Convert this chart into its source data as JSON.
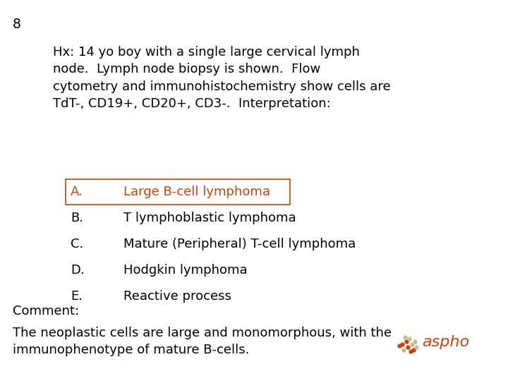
{
  "question_number": "8",
  "body_text": "Hx: 14 yo boy with a single large cervical lymph\nnode.  Lymph node biopsy is shown.  Flow\ncytometry and immunohistochemistry show cells are\nTdT-, CD19+, CD20+, CD3-.  Interpretation:",
  "answer_a_letter": "A.",
  "answer_a_text": "Large B-cell lymphoma",
  "answer_a_color": "#c8420a",
  "answers": [
    [
      "B.",
      "T lymphoblastic lymphoma"
    ],
    [
      "C.",
      "Mature (Peripheral) T-cell lymphoma"
    ],
    [
      "D.",
      "Hodgkin lymphoma"
    ],
    [
      "E.",
      "Reactive process"
    ]
  ],
  "comment_label": "Comment:",
  "bottom_text": "The neoplastic cells are large and monomorphous, with the\nimmunophenotype of mature B-cells.",
  "background_color": "#ffffff",
  "text_color": "#000000",
  "font_size": 13.0,
  "qnum_font_size": 13.5,
  "fig_width": 7.2,
  "fig_height": 5.4,
  "dpi": 100
}
